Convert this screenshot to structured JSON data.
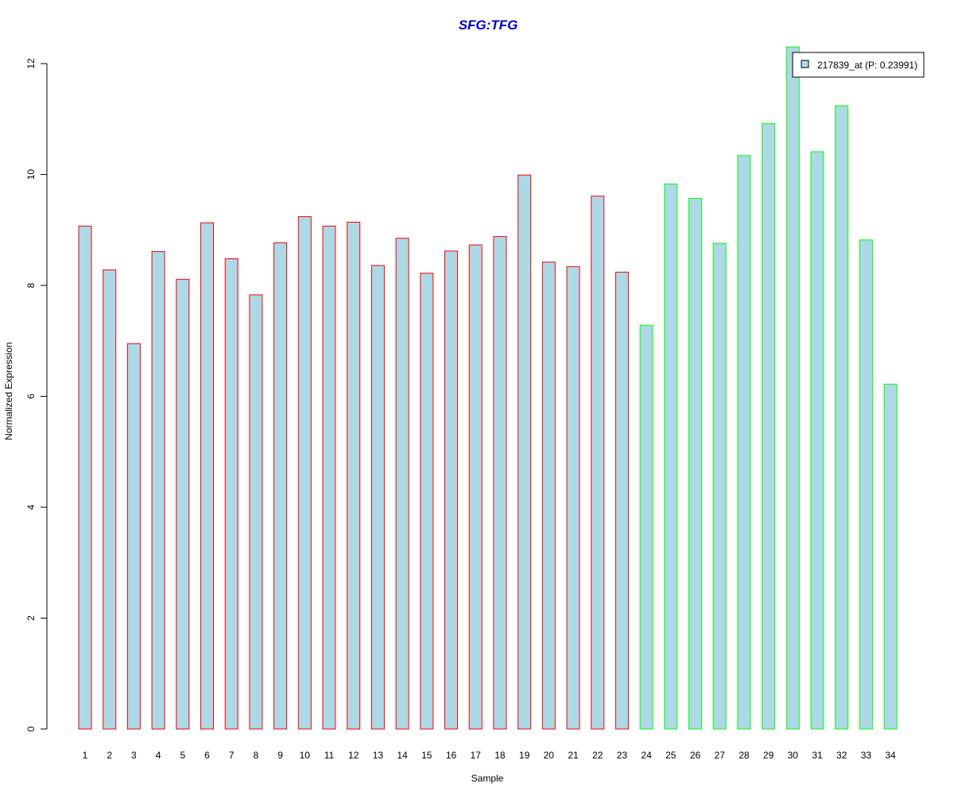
{
  "chart_data": {
    "type": "bar",
    "title": "SFG:TFG",
    "xlabel": "Sample",
    "ylabel": "Normalized Expression",
    "ylim": [
      0,
      12.5
    ],
    "yticks": [
      0,
      2,
      4,
      6,
      8,
      10,
      12
    ],
    "grid": false,
    "legend_position": "top-right",
    "categories": [
      "1",
      "2",
      "3",
      "4",
      "5",
      "6",
      "7",
      "8",
      "9",
      "10",
      "11",
      "12",
      "13",
      "14",
      "15",
      "16",
      "17",
      "18",
      "19",
      "20",
      "21",
      "22",
      "23",
      "24",
      "25",
      "26",
      "27",
      "28",
      "29",
      "30",
      "31",
      "32",
      "33",
      "34"
    ],
    "series": [
      {
        "name": "217839_at (P: 0.23991)",
        "values": [
          9.07,
          8.28,
          6.95,
          8.61,
          8.11,
          9.13,
          8.48,
          7.83,
          8.77,
          9.24,
          9.07,
          9.14,
          8.36,
          8.85,
          8.22,
          8.62,
          8.73,
          8.88,
          9.99,
          8.42,
          8.34,
          9.61,
          8.24,
          7.28,
          9.83,
          9.57,
          8.76,
          10.34,
          10.92,
          12.3,
          10.41,
          11.24,
          8.82,
          6.22
        ],
        "groups": [
          "red",
          "red",
          "red",
          "red",
          "red",
          "red",
          "red",
          "red",
          "red",
          "red",
          "red",
          "red",
          "red",
          "red",
          "red",
          "red",
          "red",
          "red",
          "red",
          "red",
          "red",
          "red",
          "red",
          "green",
          "green",
          "green",
          "green",
          "green",
          "green",
          "green",
          "green",
          "green",
          "green",
          "green"
        ]
      }
    ],
    "colors": {
      "bar_fill": "#add8e6",
      "border_red": "#ff0000",
      "border_green": "#00ff00",
      "title": "#0000cc"
    }
  }
}
